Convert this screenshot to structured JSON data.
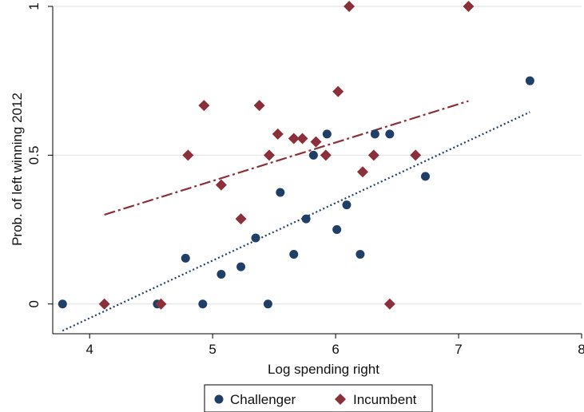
{
  "chart_data": {
    "type": "scatter",
    "xlabel": "Log spending right",
    "ylabel": "Prob. of left winning 2012",
    "xlim": [
      3.7,
      8.0
    ],
    "ylim": [
      -0.1,
      1.0
    ],
    "x_ticks": [
      4,
      5,
      6,
      7,
      8
    ],
    "y_ticks": [
      0,
      0.5,
      1
    ],
    "x_tick_labels": [
      "4",
      "5",
      "6",
      "7",
      "8"
    ],
    "y_tick_labels": [
      "0",
      "0.5",
      "1"
    ],
    "grid": "horizontal",
    "legend_position": "bottom",
    "series": [
      {
        "name": "Challenger",
        "marker": "circle",
        "color": "#1f3f66",
        "points": [
          [
            3.78,
            0.0
          ],
          [
            4.55,
            0.0
          ],
          [
            4.92,
            0.0
          ],
          [
            5.45,
            0.0
          ],
          [
            4.78,
            0.154
          ],
          [
            5.07,
            0.1
          ],
          [
            5.23,
            0.125
          ],
          [
            5.35,
            0.222
          ],
          [
            5.55,
            0.375
          ],
          [
            5.66,
            0.167
          ],
          [
            5.76,
            0.286
          ],
          [
            5.82,
            0.5
          ],
          [
            5.93,
            0.571
          ],
          [
            6.01,
            0.25
          ],
          [
            6.09,
            0.333
          ],
          [
            6.2,
            0.167
          ],
          [
            6.32,
            0.571
          ],
          [
            6.44,
            0.571
          ],
          [
            6.73,
            0.429
          ],
          [
            7.58,
            0.75
          ]
        ],
        "fit": {
          "x": [
            3.78,
            7.58
          ],
          "y": [
            -0.09,
            0.645
          ]
        }
      },
      {
        "name": "Incumbent",
        "marker": "diamond",
        "color": "#8b2f3a",
        "points": [
          [
            4.12,
            0.0
          ],
          [
            4.58,
            0.0
          ],
          [
            6.44,
            0.0
          ],
          [
            4.8,
            0.5
          ],
          [
            4.93,
            0.667
          ],
          [
            5.07,
            0.4
          ],
          [
            5.23,
            0.286
          ],
          [
            5.38,
            0.667
          ],
          [
            5.46,
            0.5
          ],
          [
            5.53,
            0.571
          ],
          [
            5.66,
            0.556
          ],
          [
            5.73,
            0.556
          ],
          [
            5.84,
            0.545
          ],
          [
            5.92,
            0.5
          ],
          [
            6.02,
            0.714
          ],
          [
            6.22,
            0.444
          ],
          [
            6.31,
            0.5
          ],
          [
            6.65,
            0.5
          ],
          [
            6.11,
            1.0
          ],
          [
            7.08,
            1.0
          ]
        ],
        "fit": {
          "x": [
            4.12,
            7.08
          ],
          "y": [
            0.3,
            0.682
          ]
        }
      }
    ]
  }
}
